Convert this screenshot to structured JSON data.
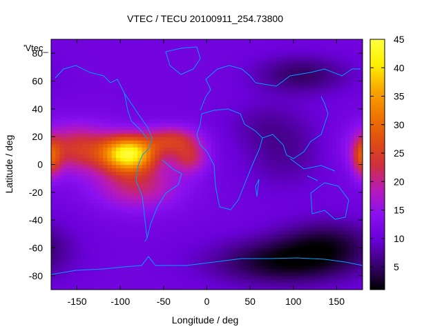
{
  "chart_data": {
    "type": "heatmap",
    "title": "VTEC / TECU 20100911_254.73800",
    "xlabel": "Longitude / deg",
    "ylabel": "Latitude / deg",
    "key_label": "'Vtec_",
    "xlim": [
      -180,
      180
    ],
    "ylim": [
      -90,
      90
    ],
    "x_ticks": [
      -150,
      -100,
      -50,
      0,
      50,
      100,
      150
    ],
    "y_ticks": [
      -80,
      -60,
      -40,
      -20,
      0,
      20,
      40,
      60,
      80
    ],
    "colorbar": {
      "range": [
        1,
        45
      ],
      "ticks": [
        5,
        10,
        15,
        20,
        25,
        30,
        35,
        40,
        45
      ],
      "palette": [
        "#000000",
        "#3a0070",
        "#6a00d8",
        "#8a10f0",
        "#b81ab8",
        "#d0303a",
        "#e05010",
        "#f07800",
        "#f8a800",
        "#fff000",
        "#ffff40"
      ]
    },
    "anomaly": {
      "background": 11,
      "polar": [
        {
          "lon": 90,
          "lat": -70,
          "amp": -9,
          "sx": 60,
          "sy": 12
        },
        {
          "lon": 140,
          "lat": -55,
          "amp": -6,
          "sx": 40,
          "sy": 12
        },
        {
          "lon": 110,
          "lat": 65,
          "amp": -6,
          "sx": 40,
          "sy": 10
        },
        {
          "lon": 90,
          "lat": 10,
          "amp": -4,
          "sx": 35,
          "sy": 20
        },
        {
          "lon": 60,
          "lat": 30,
          "amp": -2,
          "sx": 30,
          "sy": 12
        }
      ],
      "peaks": [
        {
          "lon": -90,
          "lat": 8,
          "amp": 30,
          "sx": 22,
          "sy": 9
        },
        {
          "lon": -150,
          "lat": 12,
          "amp": 13,
          "sx": 30,
          "sy": 12
        },
        {
          "lon": -80,
          "lat": -15,
          "amp": 10,
          "sx": 35,
          "sy": 12
        },
        {
          "lon": -40,
          "lat": 18,
          "amp": 12,
          "sx": 22,
          "sy": 7
        },
        {
          "lon": -20,
          "lat": 5,
          "amp": 10,
          "sx": 15,
          "sy": 8
        },
        {
          "lon": 180,
          "lat": 5,
          "amp": 12,
          "sx": 8,
          "sy": 10
        }
      ]
    }
  }
}
